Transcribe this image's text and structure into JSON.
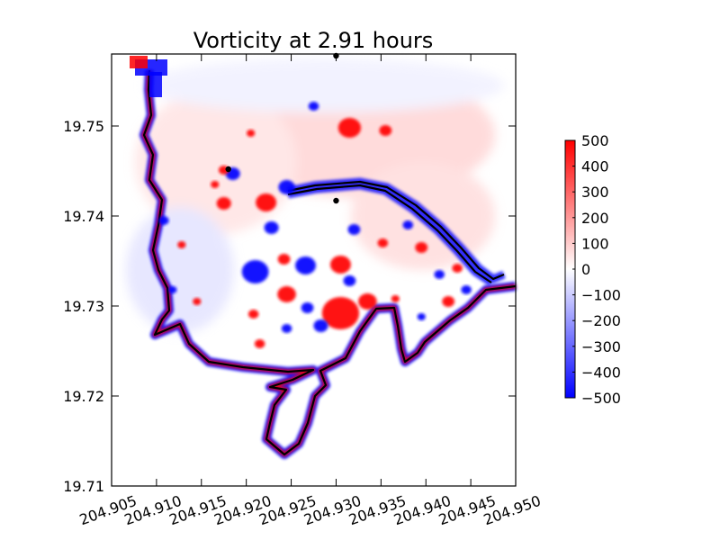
{
  "chart_data": {
    "type": "heatmap",
    "title": "Vorticity at 2.91 hours",
    "xlabel": "",
    "ylabel": "",
    "xlim": [
      204.905,
      204.95
    ],
    "ylim": [
      19.71,
      19.758
    ],
    "x_ticks": [
      "204.905",
      "204.910",
      "204.915",
      "204.920",
      "204.925",
      "204.930",
      "204.935",
      "204.940",
      "204.945",
      "204.950"
    ],
    "y_ticks": [
      "19.71",
      "19.72",
      "19.73",
      "19.74",
      "19.75"
    ],
    "x_tick_values": [
      204.905,
      204.91,
      204.915,
      204.92,
      204.925,
      204.93,
      204.935,
      204.94,
      204.945,
      204.95
    ],
    "y_tick_values": [
      19.71,
      19.72,
      19.73,
      19.74,
      19.75
    ],
    "colorbar": {
      "colormap": "bwr",
      "range": [
        -500,
        500
      ],
      "ticks": [
        "500",
        "400",
        "300",
        "200",
        "100",
        "0",
        "−100",
        "−200",
        "−300",
        "−400",
        "−500"
      ],
      "tick_values": [
        500,
        400,
        300,
        200,
        100,
        0,
        -100,
        -200,
        -300,
        -400,
        -500
      ],
      "colors": {
        "low": "#0000ff",
        "mid": "#ffffff",
        "high": "#ff0000"
      }
    },
    "markers": [
      {
        "x": 204.93,
        "y": 19.7578
      },
      {
        "x": 204.918,
        "y": 19.7452
      },
      {
        "x": 204.93,
        "y": 19.7417
      }
    ],
    "vortices": [
      {
        "x": 204.9315,
        "y": 19.7498,
        "sign": 1,
        "r": 0.0011
      },
      {
        "x": 204.9185,
        "y": 19.7447,
        "sign": -1,
        "r": 0.0007
      },
      {
        "x": 204.9175,
        "y": 19.7451,
        "sign": 1,
        "r": 0.0005
      },
      {
        "x": 204.9175,
        "y": 19.7414,
        "sign": 1,
        "r": 0.0007
      },
      {
        "x": 204.9222,
        "y": 19.7415,
        "sign": 1,
        "r": 0.001
      },
      {
        "x": 204.9245,
        "y": 19.7432,
        "sign": -1,
        "r": 0.0008
      },
      {
        "x": 204.9228,
        "y": 19.7387,
        "sign": -1,
        "r": 0.0007
      },
      {
        "x": 204.921,
        "y": 19.7338,
        "sign": -1,
        "r": 0.0013
      },
      {
        "x": 204.9242,
        "y": 19.7352,
        "sign": 1,
        "r": 0.0006
      },
      {
        "x": 204.9266,
        "y": 19.7345,
        "sign": -1,
        "r": 0.001
      },
      {
        "x": 204.9305,
        "y": 19.7346,
        "sign": 1,
        "r": 0.001
      },
      {
        "x": 204.9315,
        "y": 19.7328,
        "sign": -1,
        "r": 0.0006
      },
      {
        "x": 204.9245,
        "y": 19.7313,
        "sign": 1,
        "r": 0.0009
      },
      {
        "x": 204.9268,
        "y": 19.7298,
        "sign": -1,
        "r": 0.0006
      },
      {
        "x": 204.9305,
        "y": 19.7292,
        "sign": 1,
        "r": 0.0018
      },
      {
        "x": 204.9335,
        "y": 19.7305,
        "sign": 1,
        "r": 0.0009
      },
      {
        "x": 204.9283,
        "y": 19.7278,
        "sign": -1,
        "r": 0.0007
      },
      {
        "x": 204.9245,
        "y": 19.7275,
        "sign": -1,
        "r": 0.0005
      },
      {
        "x": 204.9208,
        "y": 19.7291,
        "sign": 1,
        "r": 0.0005
      },
      {
        "x": 204.9215,
        "y": 19.7258,
        "sign": 1,
        "r": 0.0005
      },
      {
        "x": 204.932,
        "y": 19.7385,
        "sign": -1,
        "r": 0.0006
      },
      {
        "x": 204.9352,
        "y": 19.737,
        "sign": 1,
        "r": 0.0005
      },
      {
        "x": 204.938,
        "y": 19.739,
        "sign": -1,
        "r": 0.0005
      },
      {
        "x": 204.9395,
        "y": 19.7365,
        "sign": 1,
        "r": 0.0006
      },
      {
        "x": 204.9415,
        "y": 19.7335,
        "sign": -1,
        "r": 0.0005
      },
      {
        "x": 204.9435,
        "y": 19.7342,
        "sign": 1,
        "r": 0.0005
      },
      {
        "x": 204.9445,
        "y": 19.7318,
        "sign": -1,
        "r": 0.0005
      },
      {
        "x": 204.9425,
        "y": 19.7305,
        "sign": 1,
        "r": 0.0006
      },
      {
        "x": 204.9395,
        "y": 19.7288,
        "sign": -1,
        "r": 0.0004
      },
      {
        "x": 204.9366,
        "y": 19.7308,
        "sign": 1,
        "r": 0.0004
      },
      {
        "x": 204.9108,
        "y": 19.7395,
        "sign": -1,
        "r": 0.0005
      },
      {
        "x": 204.9128,
        "y": 19.7368,
        "sign": 1,
        "r": 0.0004
      },
      {
        "x": 204.9118,
        "y": 19.7318,
        "sign": -1,
        "r": 0.0004
      },
      {
        "x": 204.9145,
        "y": 19.7305,
        "sign": 1,
        "r": 0.0004
      },
      {
        "x": 204.9355,
        "y": 19.7495,
        "sign": 1,
        "r": 0.0006
      },
      {
        "x": 204.9275,
        "y": 19.7522,
        "sign": -1,
        "r": 0.0005
      },
      {
        "x": 204.9205,
        "y": 19.7492,
        "sign": 1,
        "r": 0.0004
      },
      {
        "x": 204.9165,
        "y": 19.7435,
        "sign": 1,
        "r": 0.0004
      }
    ]
  }
}
